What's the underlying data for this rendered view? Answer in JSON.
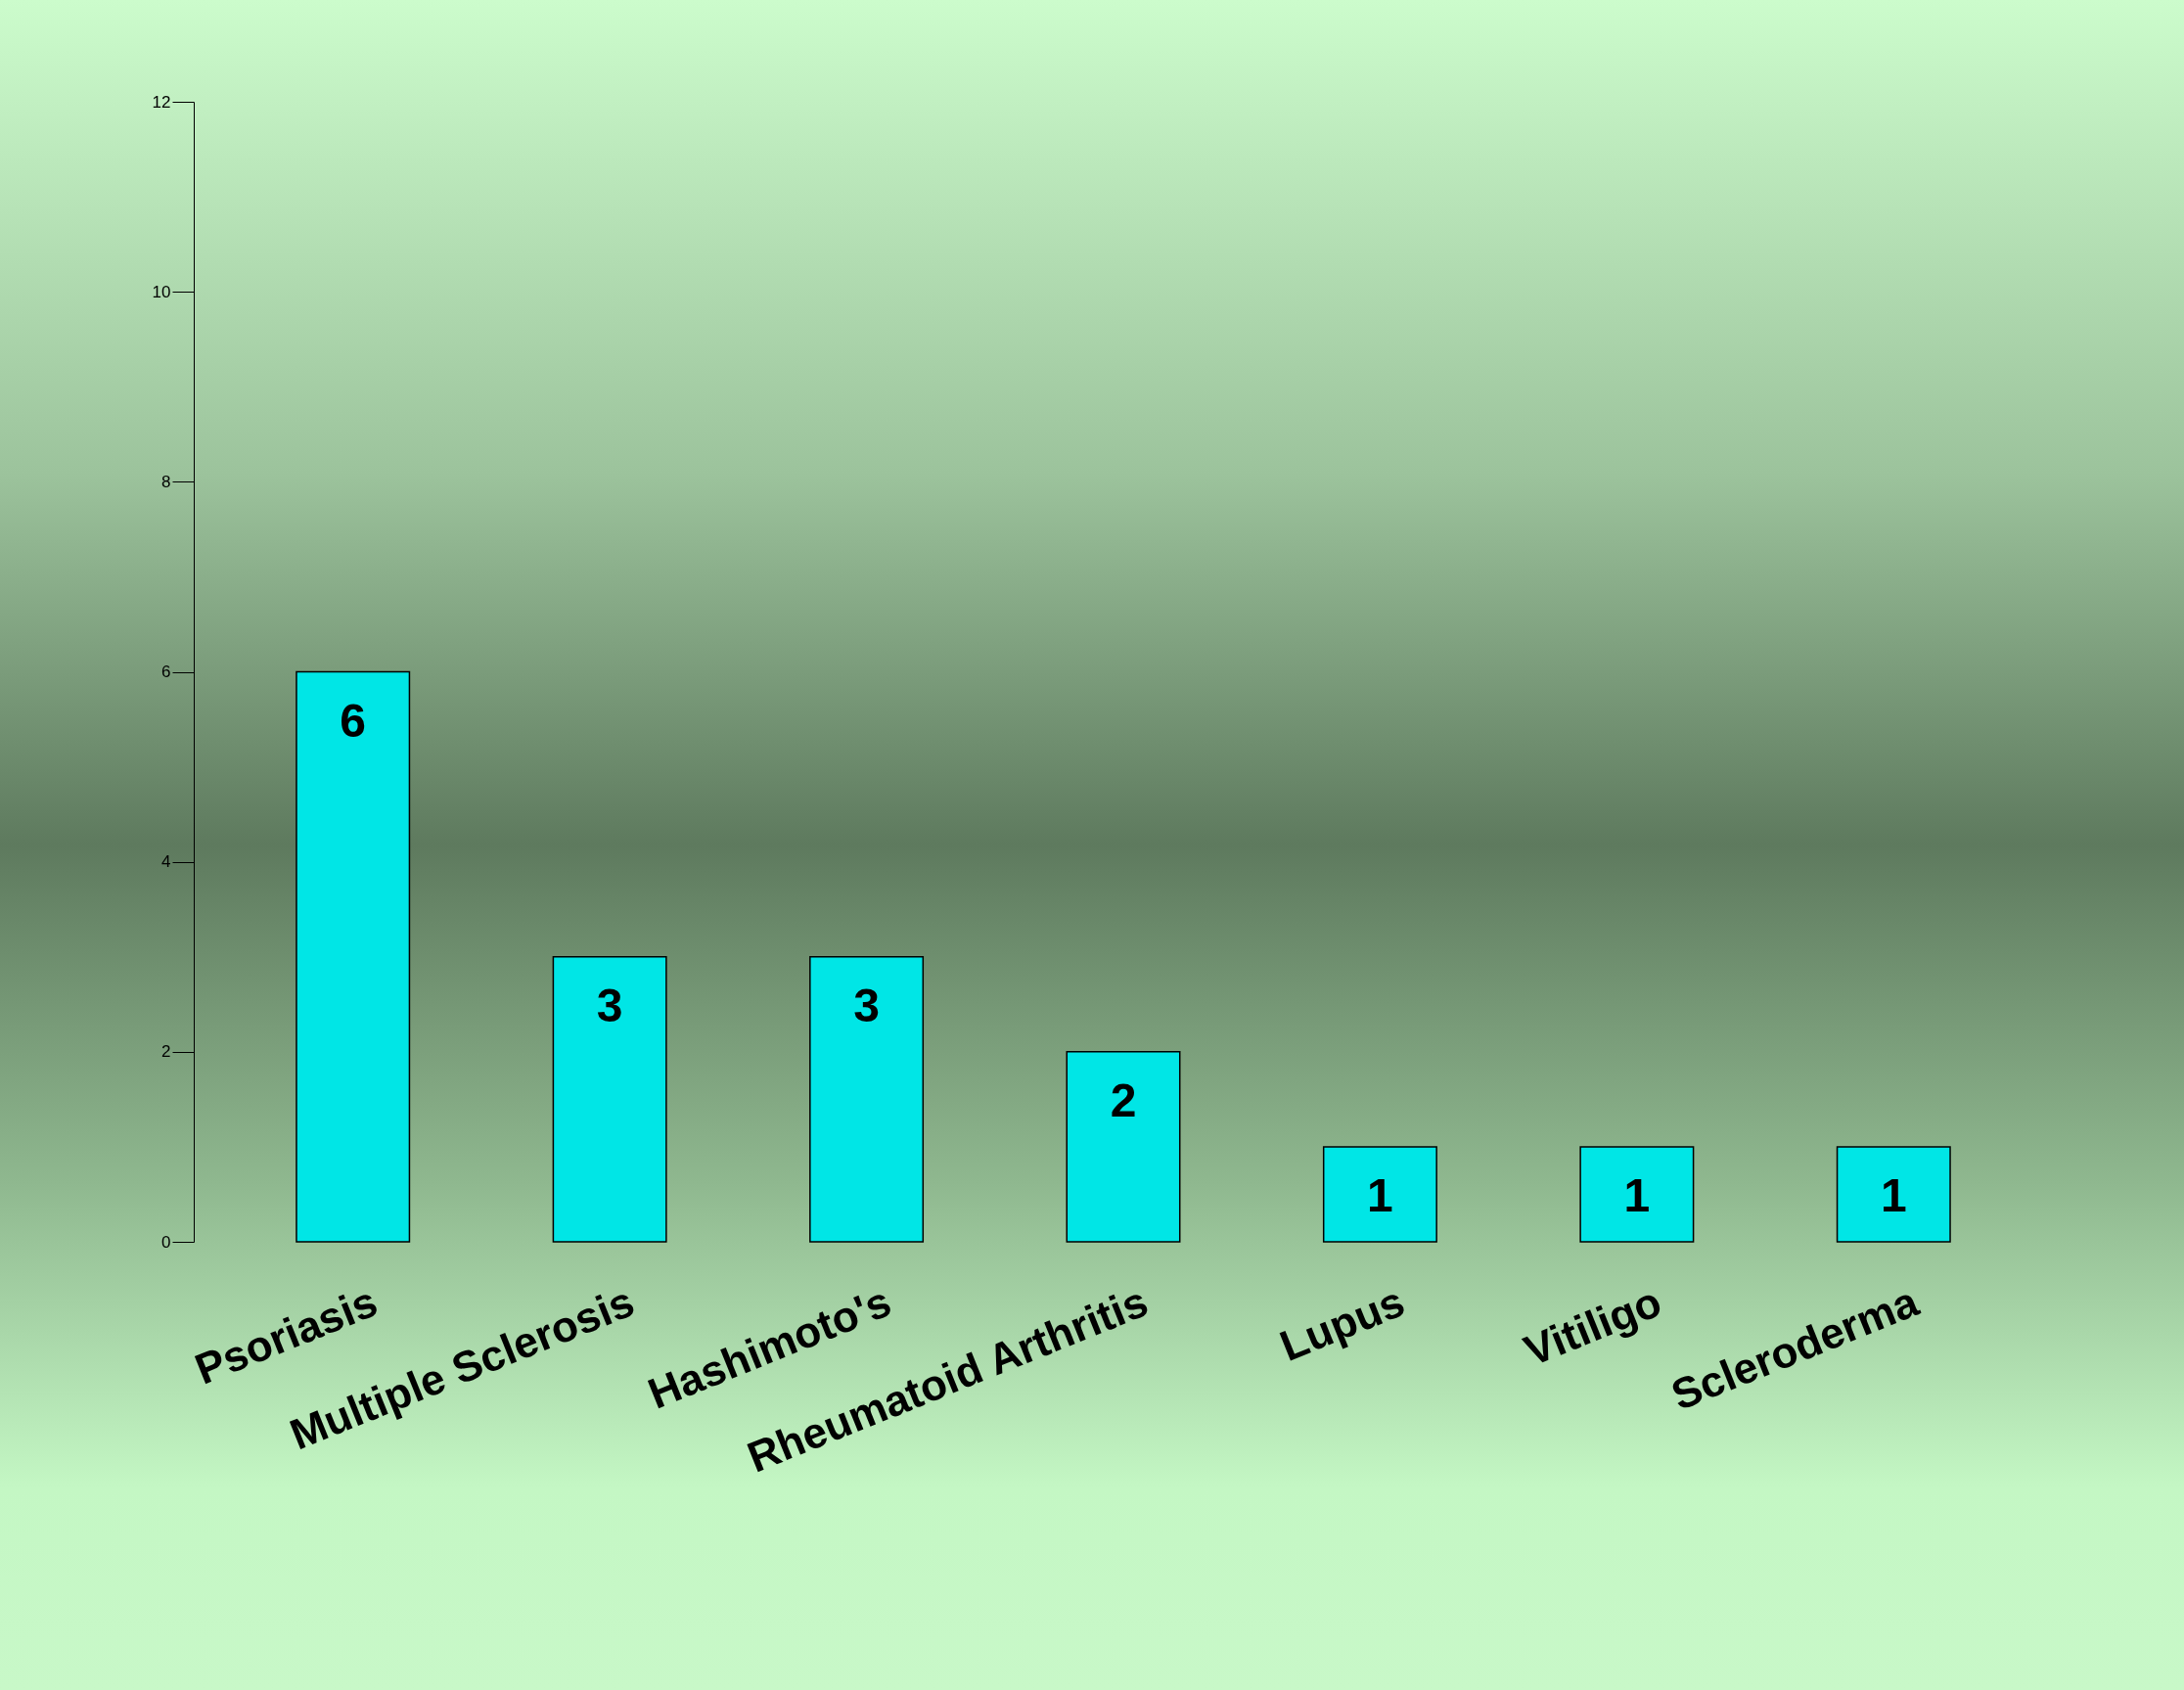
{
  "chart_data": {
    "type": "bar",
    "categories": [
      "Psoriasis",
      "Multiple Sclerosis",
      "Hashimoto's",
      "Rheumatoid Arthritis",
      "Lupus",
      "Vitiligo",
      "Scleroderma"
    ],
    "values": [
      6,
      3,
      3,
      2,
      1,
      1,
      1
    ],
    "color": "#00e6e6",
    "ylim": [
      0,
      12
    ],
    "yticks": [
      0,
      2,
      4,
      6,
      8,
      10,
      12
    ],
    "data_labels": true,
    "grid": false
  }
}
